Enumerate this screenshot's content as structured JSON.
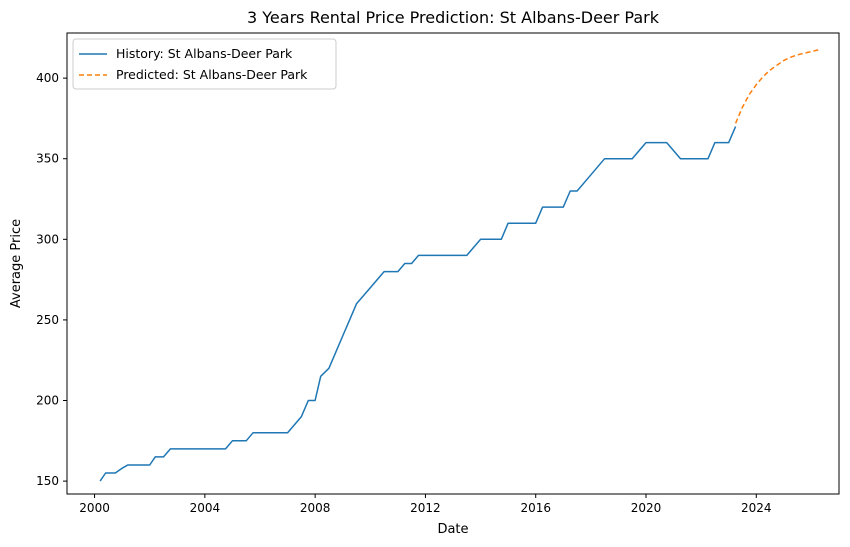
{
  "chart_data": {
    "type": "line",
    "title": "3 Years Rental Price Prediction: St Albans-Deer Park",
    "xlabel": "Date",
    "ylabel": "Average Price",
    "xlim": [
      1999.0,
      2027.0
    ],
    "ylim": [
      142,
      428
    ],
    "xticks": [
      2000,
      2004,
      2008,
      2012,
      2016,
      2020,
      2024
    ],
    "yticks": [
      150,
      200,
      250,
      300,
      350,
      400
    ],
    "grid": false,
    "legend_position": "top-left",
    "series": [
      {
        "name": "History: St Albans-Deer Park",
        "style": "solid",
        "color": "#1f77b4",
        "x": [
          2000.2,
          2000.4,
          2000.75,
          2001.0,
          2001.2,
          2001.5,
          2001.75,
          2002.0,
          2002.2,
          2002.5,
          2002.75,
          2003.0,
          2003.25,
          2003.5,
          2003.75,
          2004.0,
          2004.5,
          2004.75,
          2005.0,
          2005.25,
          2005.5,
          2005.75,
          2006.0,
          2006.5,
          2007.0,
          2007.5,
          2007.75,
          2008.0,
          2008.2,
          2008.5,
          2008.75,
          2009.0,
          2009.25,
          2009.5,
          2010.0,
          2010.5,
          2011.0,
          2011.25,
          2011.5,
          2011.75,
          2012.0,
          2012.5,
          2013.0,
          2013.5,
          2014.0,
          2014.25,
          2014.75,
          2015.0,
          2015.5,
          2016.0,
          2016.25,
          2016.5,
          2017.0,
          2017.25,
          2017.5,
          2018.0,
          2018.5,
          2019.0,
          2019.5,
          2020.0,
          2020.5,
          2020.75,
          2021.25,
          2021.75,
          2022.25,
          2022.5,
          2022.75,
          2023.0,
          2023.25
        ],
        "values": [
          150,
          155,
          155,
          158,
          160,
          160,
          160,
          160,
          165,
          165,
          170,
          170,
          170,
          170,
          170,
          170,
          170,
          170,
          175,
          175,
          175,
          180,
          180,
          180,
          180,
          190,
          200,
          200,
          215,
          220,
          230,
          240,
          250,
          260,
          270,
          280,
          280,
          285,
          285,
          290,
          290,
          290,
          290,
          290,
          300,
          300,
          300,
          310,
          310,
          310,
          320,
          320,
          320,
          330,
          330,
          340,
          350,
          350,
          350,
          360,
          360,
          360,
          350,
          350,
          350,
          360,
          360,
          360,
          370
        ]
      },
      {
        "name": "Predicted: St Albans-Deer Park",
        "style": "dashed",
        "color": "#ff7f0e",
        "x": [
          2023.25,
          2023.5,
          2023.75,
          2024.0,
          2024.25,
          2024.5,
          2024.75,
          2025.0,
          2025.25,
          2025.5,
          2025.75,
          2026.0,
          2026.25
        ],
        "values": [
          372,
          382,
          390,
          396,
          401,
          405,
          408,
          411,
          413,
          414.5,
          415.5,
          416.5,
          417.5
        ]
      }
    ]
  }
}
